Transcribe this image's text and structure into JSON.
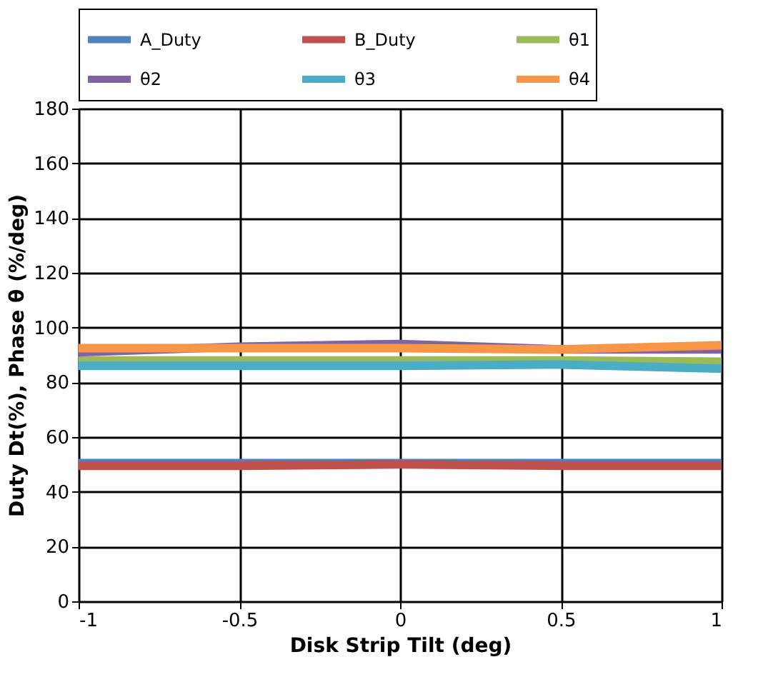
{
  "chart_data": {
    "type": "line",
    "xlabel": "Disk Strip Tilt (deg)",
    "ylabel": "Duty Dt(%), Phase θ (%/deg)",
    "x": [
      -1,
      -0.5,
      0,
      0.5,
      1
    ],
    "series": [
      {
        "name": "A_Duty",
        "color": "#4f81bd",
        "values": [
          50.5,
          50.5,
          50.5,
          50.5,
          50.5
        ]
      },
      {
        "name": "B_Duty",
        "color": "#c0504d",
        "values": [
          49.5,
          49.5,
          50,
          49.5,
          49.5
        ]
      },
      {
        "name": "θ1",
        "color": "#9bbb59",
        "values": [
          88,
          88,
          88,
          88,
          87.5
        ]
      },
      {
        "name": "θ2",
        "color": "#8064a2",
        "values": [
          91,
          93,
          94,
          92,
          92
        ]
      },
      {
        "name": "θ3",
        "color": "#4bacc6",
        "values": [
          86,
          86,
          86,
          86.5,
          85
        ]
      },
      {
        "name": "θ4",
        "color": "#f79646",
        "values": [
          92.5,
          92.5,
          92.5,
          92,
          93.5
        ]
      }
    ],
    "xlim": [
      -1,
      1
    ],
    "xticks": [
      -1,
      -0.5,
      0,
      0.5,
      1
    ],
    "ylim": [
      0,
      180
    ],
    "yticks": [
      0,
      20,
      40,
      60,
      80,
      100,
      120,
      140,
      160,
      180
    ],
    "grid": true,
    "legend": "top",
    "marker": "none",
    "line_style": "solid"
  }
}
